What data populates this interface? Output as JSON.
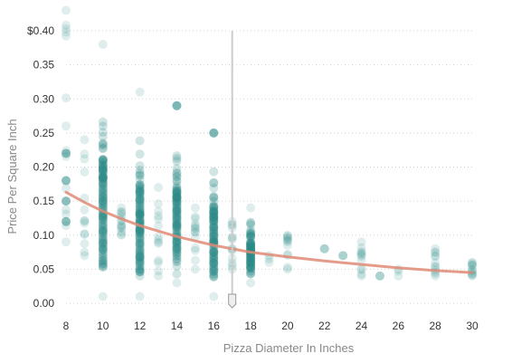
{
  "chart_data": {
    "type": "scatter",
    "title": "",
    "xlabel": "Pizza Diameter In Inches",
    "ylabel": "Price Per Square Inch",
    "xlim": [
      8,
      30
    ],
    "ylim": [
      0,
      0.4
    ],
    "x_ticks": [
      8,
      10,
      12,
      14,
      16,
      18,
      20,
      22,
      24,
      26,
      28,
      30
    ],
    "x_tick_labels": [
      "8",
      "10",
      "12",
      "14",
      "16",
      "18",
      "20",
      "22",
      "24",
      "26",
      "28",
      "30"
    ],
    "y_ticks": [
      0,
      0.05,
      0.1,
      0.15,
      0.2,
      0.25,
      0.3,
      0.35,
      0.4
    ],
    "y_tick_labels": [
      "0.00",
      "0.05",
      "0.10",
      "0.15",
      "0.20",
      "0.25",
      "0.30",
      "0.35",
      "$0.40"
    ],
    "grid": "horizontal dotted",
    "colors": {
      "points": "#2a8a86",
      "trend": "#e08a75",
      "grid": "#d0d0d0",
      "marker": "#cccccc"
    },
    "marker_x": 17,
    "trend_curve": [
      {
        "x": 8,
        "y": 0.163
      },
      {
        "x": 9,
        "y": 0.148
      },
      {
        "x": 10,
        "y": 0.135
      },
      {
        "x": 11,
        "y": 0.124
      },
      {
        "x": 12,
        "y": 0.114
      },
      {
        "x": 14,
        "y": 0.098
      },
      {
        "x": 16,
        "y": 0.085
      },
      {
        "x": 18,
        "y": 0.075
      },
      {
        "x": 20,
        "y": 0.068
      },
      {
        "x": 22,
        "y": 0.062
      },
      {
        "x": 24,
        "y": 0.057
      },
      {
        "x": 26,
        "y": 0.052
      },
      {
        "x": 28,
        "y": 0.048
      },
      {
        "x": 30,
        "y": 0.045
      }
    ],
    "columns": [
      {
        "x": 8,
        "y_min": 0.09,
        "y_max": 0.43,
        "density": "light",
        "highlights": [
          0.12,
          0.15,
          0.18,
          0.22
        ]
      },
      {
        "x": 9,
        "y_min": 0.07,
        "y_max": 0.24,
        "density": "light",
        "highlights": []
      },
      {
        "x": 10,
        "y_min": 0.01,
        "y_max": 0.38,
        "density": "dense",
        "highlights": []
      },
      {
        "x": 11,
        "y_min": 0.1,
        "y_max": 0.14,
        "density": "light",
        "highlights": []
      },
      {
        "x": 12,
        "y_min": 0.01,
        "y_max": 0.31,
        "density": "dense",
        "highlights": []
      },
      {
        "x": 13,
        "y_min": 0.04,
        "y_max": 0.17,
        "density": "light",
        "highlights": []
      },
      {
        "x": 14,
        "y_min": 0.03,
        "y_max": 0.29,
        "density": "dense",
        "highlights": [
          0.29
        ]
      },
      {
        "x": 15,
        "y_min": 0.05,
        "y_max": 0.14,
        "density": "light",
        "highlights": []
      },
      {
        "x": 16,
        "y_min": 0.01,
        "y_max": 0.25,
        "density": "dense",
        "highlights": [
          0.25
        ]
      },
      {
        "x": 17,
        "y_min": 0.05,
        "y_max": 0.12,
        "density": "light",
        "highlights": []
      },
      {
        "x": 18,
        "y_min": 0.03,
        "y_max": 0.14,
        "density": "dense",
        "highlights": []
      },
      {
        "x": 19,
        "y_min": 0.06,
        "y_max": 0.07,
        "density": "sparse",
        "highlights": []
      },
      {
        "x": 20,
        "y_min": 0.05,
        "y_max": 0.1,
        "density": "medium",
        "highlights": []
      },
      {
        "x": 22,
        "y_min": 0.08,
        "y_max": 0.08,
        "density": "sparse",
        "highlights": []
      },
      {
        "x": 23,
        "y_min": 0.07,
        "y_max": 0.07,
        "density": "sparse",
        "highlights": []
      },
      {
        "x": 24,
        "y_min": 0.04,
        "y_max": 0.09,
        "density": "medium",
        "highlights": []
      },
      {
        "x": 25,
        "y_min": 0.04,
        "y_max": 0.04,
        "density": "sparse",
        "highlights": []
      },
      {
        "x": 26,
        "y_min": 0.04,
        "y_max": 0.05,
        "density": "sparse",
        "highlights": []
      },
      {
        "x": 28,
        "y_min": 0.04,
        "y_max": 0.08,
        "density": "medium",
        "highlights": []
      },
      {
        "x": 30,
        "y_min": 0.04,
        "y_max": 0.06,
        "density": "medium",
        "highlights": []
      }
    ]
  }
}
